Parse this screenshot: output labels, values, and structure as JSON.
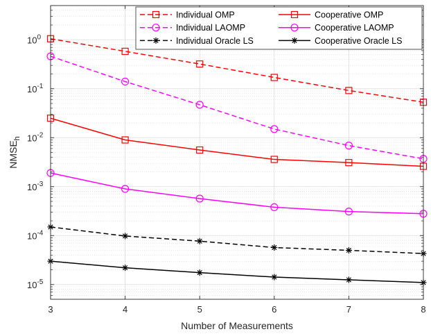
{
  "chart_data": {
    "type": "line",
    "title": "",
    "xlabel": "Number of Measurements",
    "ylabel": "NMSE",
    "ylabel_subscript": "h",
    "yscale": "log",
    "xlim": [
      3,
      8
    ],
    "ylim": [
      5e-06,
      5
    ],
    "grid": true,
    "minor_grid": true,
    "legend_position": "top-right",
    "legend_columns": 2,
    "x": [
      3,
      4,
      5,
      6,
      7,
      8
    ],
    "x_tick_labels": [
      "3",
      "4",
      "5",
      "6",
      "7",
      "8"
    ],
    "y_ticks": [
      {
        "base": "10",
        "exp": "-5"
      },
      {
        "base": "10",
        "exp": "-4"
      },
      {
        "base": "10",
        "exp": "-3"
      },
      {
        "base": "10",
        "exp": "-2"
      },
      {
        "base": "10",
        "exp": "-1"
      },
      {
        "base": "10",
        "exp": "0"
      }
    ],
    "series": [
      {
        "name": "Individual OMP",
        "color": "#ff0000",
        "dash": "dashed",
        "marker": "square",
        "values": [
          1.05,
          0.58,
          0.32,
          0.17,
          0.092,
          0.053
        ]
      },
      {
        "name": "Cooperative OMP",
        "color": "#ff0000",
        "dash": "solid",
        "marker": "square",
        "values": [
          0.025,
          0.009,
          0.0056,
          0.0036,
          0.0031,
          0.0026
        ]
      },
      {
        "name": "Individual LAOMP",
        "color": "#ff00ff",
        "dash": "dashed",
        "marker": "circle",
        "values": [
          0.46,
          0.14,
          0.047,
          0.015,
          0.0069,
          0.0037
        ]
      },
      {
        "name": "Cooperative LAOMP",
        "color": "#ff00ff",
        "dash": "solid",
        "marker": "circle",
        "values": [
          0.0019,
          0.0009,
          0.00057,
          0.00038,
          0.00031,
          0.00028
        ]
      },
      {
        "name": "Individual Oracle LS",
        "color": "#000000",
        "dash": "dashed",
        "marker": "asterisk",
        "values": [
          0.00015,
          9.8e-05,
          7.7e-05,
          5.7e-05,
          5e-05,
          4.3e-05
        ]
      },
      {
        "name": "Cooperative Oracle LS",
        "color": "#000000",
        "dash": "solid",
        "marker": "asterisk",
        "values": [
          3e-05,
          2.2e-05,
          1.75e-05,
          1.42e-05,
          1.25e-05,
          1.1e-05
        ]
      }
    ]
  }
}
